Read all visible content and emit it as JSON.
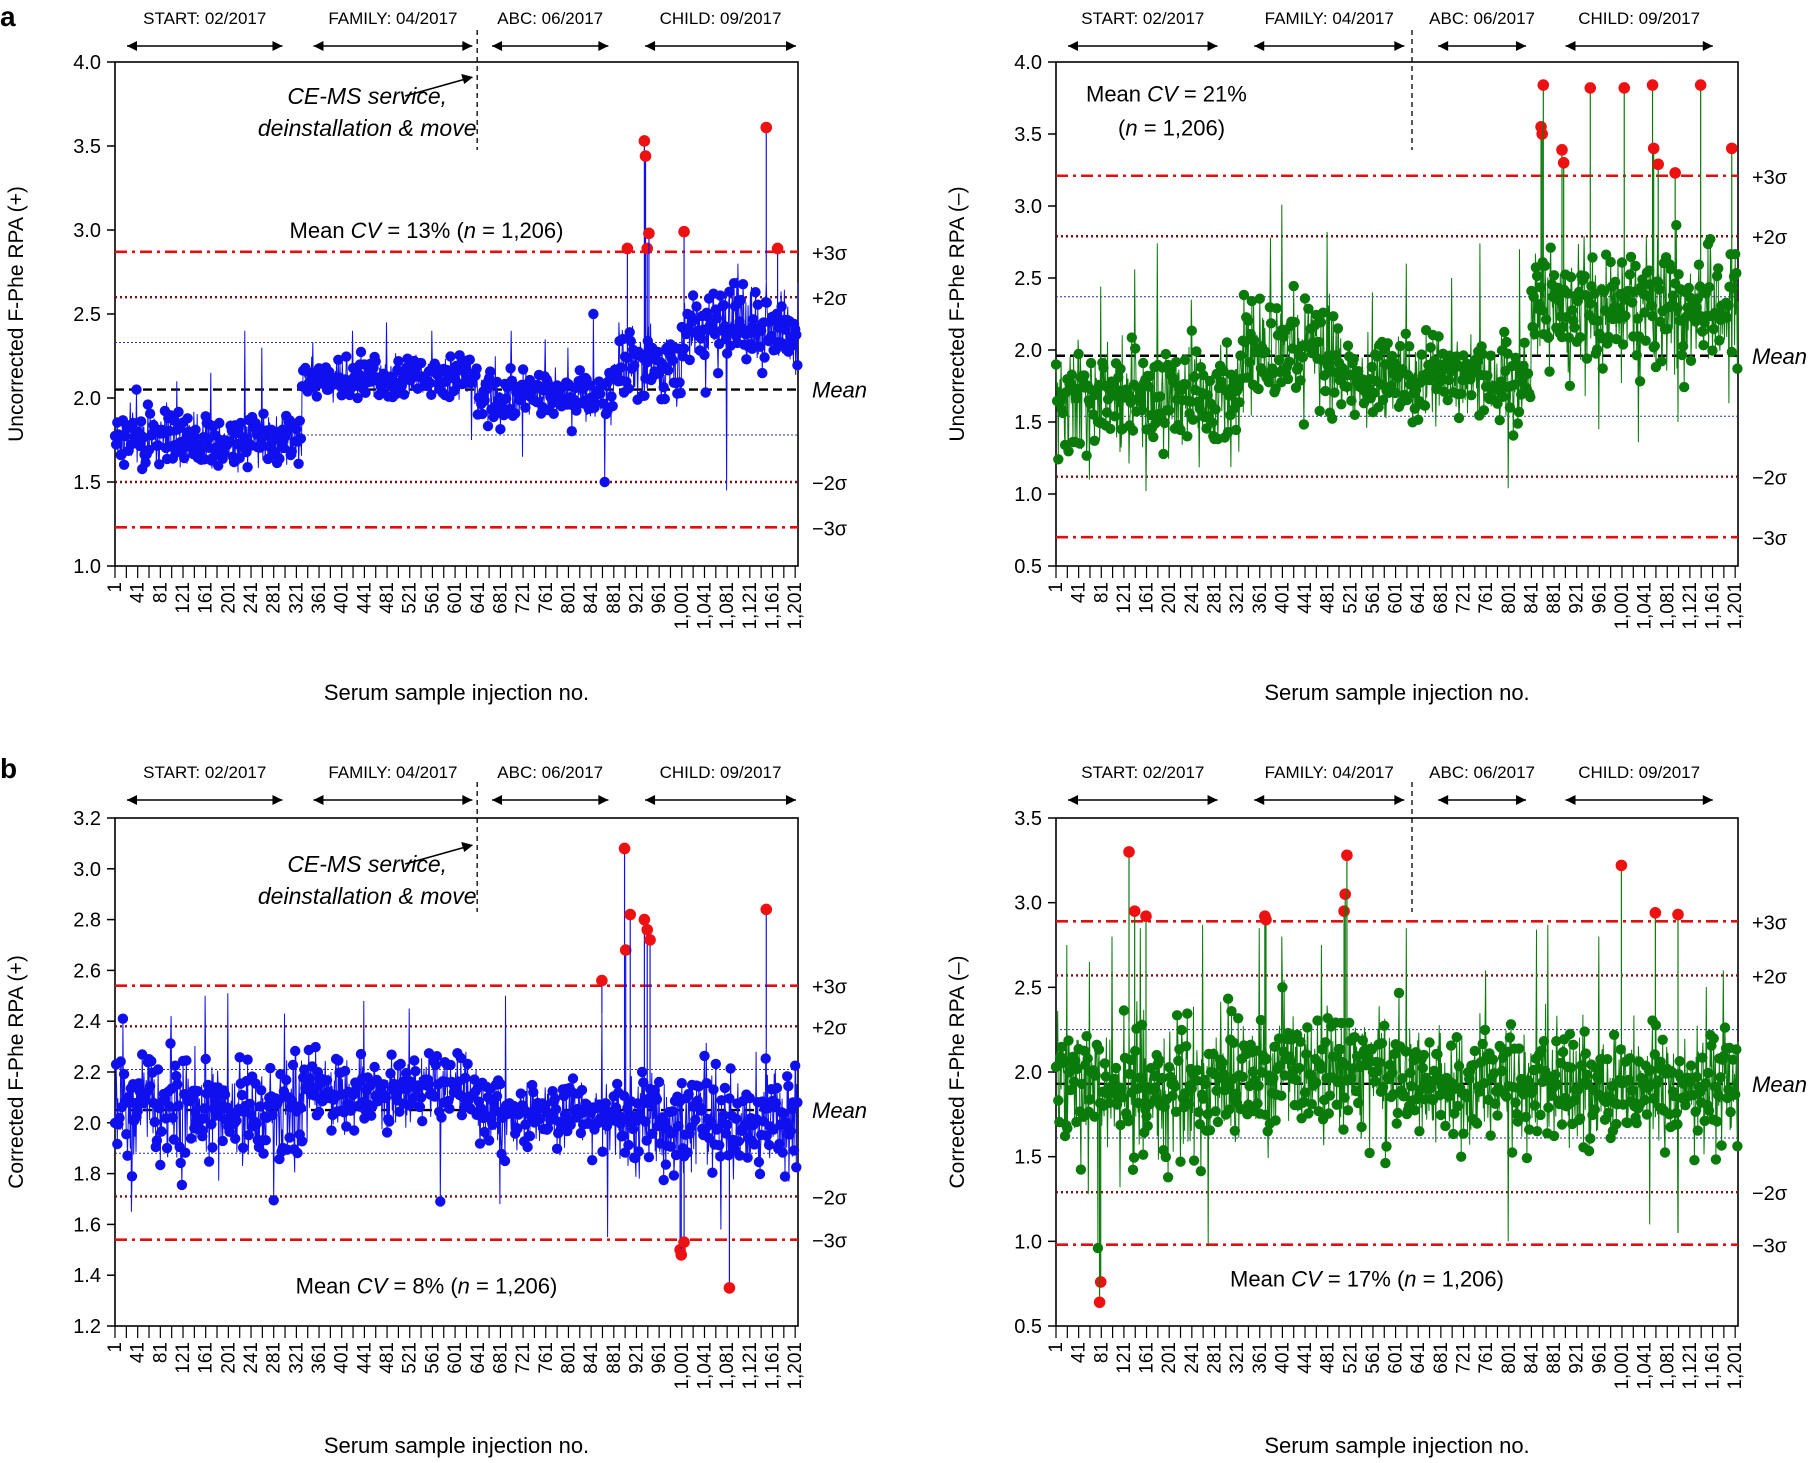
{
  "figure": {
    "x_axis_title": "Serum sample injection no.",
    "tick_labels": [
      "1",
      "41",
      "81",
      "121",
      "161",
      "201",
      "241",
      "281",
      "321",
      "361",
      "401",
      "441",
      "481",
      "521",
      "561",
      "601",
      "641",
      "681",
      "721",
      "761",
      "801",
      "841",
      "881",
      "921",
      "961",
      "1,001",
      "1,041",
      "1,081",
      "1,121",
      "1,161",
      "1,201"
    ]
  },
  "chart_data": [
    {
      "panel_label": "a",
      "type": "scatter",
      "ylabel": "Uncorrected F-Phe RPA (+)",
      "xlabel": "Serum sample injection no.",
      "ylim": [
        1.0,
        4.0
      ],
      "yticks": [
        "1.0",
        "1.5",
        "2.0",
        "2.5",
        "3.0",
        "3.5",
        "4.0"
      ],
      "xlim": [
        1,
        1206
      ],
      "color": "#1010ee",
      "outlier_color": "#ee1111",
      "mean": 2.05,
      "plus2": 2.6,
      "plus3": 2.87,
      "minus2": 1.5,
      "minus3": 1.23,
      "plus1": 2.33,
      "minus1": 1.78,
      "ref_labels": {
        "plus3": "+3σ",
        "plus2": "+2σ",
        "mean": "Mean",
        "minus2": "−2σ",
        "minus3": "−3σ"
      },
      "annotation_pre": "Mean ",
      "annotation_cv": "CV",
      "annotation_post": " = 13% (",
      "annotation_n": "n",
      "annotation_end": " = 1,206)",
      "annotation_y": 3.0,
      "note": [
        "CE-MS service,",
        "deinstallation & move"
      ],
      "divider_at": 640,
      "periods": [
        {
          "label": "START: 02/2017",
          "from": 1,
          "to": 300
        },
        {
          "label": "FAMILY: 04/2017",
          "from": 330,
          "to": 635
        },
        {
          "label": "ABC: 06/2017",
          "from": 645,
          "to": 875
        },
        {
          "label": "CHILD: 09/2017",
          "from": 915,
          "to": 1206
        }
      ],
      "segments": [
        {
          "from": 1,
          "to": 330,
          "mean": 1.76,
          "sd": 0.12
        },
        {
          "from": 331,
          "to": 640,
          "mean": 2.12,
          "sd": 0.09
        },
        {
          "from": 641,
          "to": 880,
          "mean": 2.02,
          "sd": 0.11
        },
        {
          "from": 881,
          "to": 1000,
          "mean": 2.2,
          "sd": 0.17
        },
        {
          "from": 1001,
          "to": 1206,
          "mean": 2.42,
          "sd": 0.16
        }
      ],
      "spikes": [
        [
          39,
          2.05
        ],
        [
          110,
          2.1
        ],
        [
          170,
          2.15
        ],
        [
          230,
          2.4
        ],
        [
          260,
          2.3
        ],
        [
          350,
          2.33
        ],
        [
          420,
          2.4
        ],
        [
          480,
          2.45
        ],
        [
          560,
          2.4
        ],
        [
          700,
          2.4
        ],
        [
          760,
          2.35
        ],
        [
          800,
          2.3
        ],
        [
          845,
          2.5
        ],
        [
          890,
          2.45
        ],
        [
          975,
          2.3
        ],
        [
          1080,
          1.45
        ],
        [
          1100,
          2.8
        ],
        [
          1150,
          2.7
        ],
        [
          865,
          1.5
        ],
        [
          720,
          1.65
        ],
        [
          630,
          1.75
        ]
      ],
      "outliers": [
        [
          905,
          2.89
        ],
        [
          935,
          3.53
        ],
        [
          937,
          3.44
        ],
        [
          940,
          2.89
        ],
        [
          943,
          2.98
        ],
        [
          1005,
          2.99
        ],
        [
          1150,
          3.61
        ],
        [
          1170,
          2.89
        ]
      ]
    },
    {
      "panel_label": "",
      "type": "scatter",
      "ylabel": "Uncorrected F-Phe RPA (–)",
      "xlabel": "Serum sample injection no.",
      "ylim": [
        0.5,
        4.0
      ],
      "yticks": [
        "0.5",
        "1.0",
        "1.5",
        "2.0",
        "2.5",
        "3.0",
        "3.5",
        "4.0"
      ],
      "xlim": [
        1,
        1206
      ],
      "color": "#0a7a0a",
      "outlier_color": "#ee1111",
      "mean": 1.96,
      "plus2": 2.79,
      "plus3": 3.21,
      "minus2": 1.12,
      "minus3": 0.7,
      "plus1": 2.37,
      "minus1": 1.54,
      "ref_labels": {
        "plus3": "+3σ",
        "plus2": "+2σ",
        "mean": "Mean",
        "minus2": "−2σ",
        "minus3": "−3σ"
      },
      "annotation_lines": true,
      "annotation_pre": "Mean ",
      "annotation_cv": "CV",
      "annotation_post": " = 21%",
      "annotation_line2_pre": "(",
      "annotation_n": "n",
      "annotation_end": " = 1,206)",
      "annotation_y": 3.78,
      "note": [],
      "divider_at": 630,
      "periods": [
        {
          "label": "START: 02/2017",
          "from": 1,
          "to": 290
        },
        {
          "label": "FAMILY: 04/2017",
          "from": 330,
          "to": 620
        },
        {
          "label": "ABC: 06/2017",
          "from": 655,
          "to": 835
        },
        {
          "label": "CHILD: 09/2017",
          "from": 880,
          "to": 1165
        }
      ],
      "segments": [
        {
          "from": 1,
          "to": 330,
          "mean": 1.66,
          "sd": 0.27
        },
        {
          "from": 331,
          "to": 500,
          "mean": 2.0,
          "sd": 0.25
        },
        {
          "from": 501,
          "to": 840,
          "mean": 1.8,
          "sd": 0.19
        },
        {
          "from": 841,
          "to": 1206,
          "mean": 2.3,
          "sd": 0.3
        }
      ],
      "spikes": [
        [
          80,
          2.44
        ],
        [
          140,
          2.56
        ],
        [
          180,
          2.74
        ],
        [
          240,
          2.35
        ],
        [
          400,
          3.01
        ],
        [
          380,
          2.78
        ],
        [
          480,
          2.82
        ],
        [
          560,
          2.4
        ],
        [
          620,
          2.6
        ],
        [
          700,
          2.5
        ],
        [
          750,
          2.74
        ],
        [
          800,
          1.04
        ],
        [
          820,
          2.7
        ],
        [
          160,
          1.02
        ],
        [
          60,
          1.1
        ],
        [
          960,
          1.45
        ],
        [
          1030,
          1.36
        ],
        [
          1100,
          1.5
        ],
        [
          1190,
          1.63
        ]
      ],
      "outliers": [
        [
          858,
          3.55
        ],
        [
          860,
          3.5
        ],
        [
          862,
          3.84
        ],
        [
          895,
          3.39
        ],
        [
          898,
          3.3
        ],
        [
          945,
          3.82
        ],
        [
          1005,
          3.82
        ],
        [
          1055,
          3.84
        ],
        [
          1057,
          3.4
        ],
        [
          1065,
          3.29
        ],
        [
          1095,
          3.23
        ],
        [
          1140,
          3.84
        ],
        [
          1195,
          3.4
        ]
      ]
    },
    {
      "panel_label": "b",
      "type": "scatter",
      "ylabel": "Corrected F-Phe RPA (+)",
      "xlabel": "Serum sample injection no.",
      "ylim": [
        1.2,
        3.2
      ],
      "yticks": [
        "1.2",
        "1.4",
        "1.6",
        "1.8",
        "2.0",
        "2.2",
        "2.4",
        "2.6",
        "2.8",
        "3.0",
        "3.2"
      ],
      "xlim": [
        1,
        1206
      ],
      "color": "#1010ee",
      "outlier_color": "#ee1111",
      "mean": 2.05,
      "plus2": 2.38,
      "plus3": 2.54,
      "minus2": 1.71,
      "minus3": 1.54,
      "plus1": 2.21,
      "minus1": 1.88,
      "ref_labels": {
        "plus3": "+3σ",
        "plus2": "+2σ",
        "mean": "Mean",
        "minus2": "−2σ",
        "minus3": "−3σ"
      },
      "annotation_pre": "Mean ",
      "annotation_cv": "CV",
      "annotation_post": " = 8% (",
      "annotation_n": "n",
      "annotation_end": " = 1,206)",
      "annotation_y": 1.36,
      "note": [
        "CE-MS service,",
        "deinstallation & move"
      ],
      "divider_at": 640,
      "periods": [
        {
          "label": "START: 02/2017",
          "from": 1,
          "to": 300
        },
        {
          "label": "FAMILY: 04/2017",
          "from": 330,
          "to": 635
        },
        {
          "label": "ABC: 06/2017",
          "from": 645,
          "to": 875
        },
        {
          "label": "CHILD: 09/2017",
          "from": 915,
          "to": 1206
        }
      ],
      "segments": [
        {
          "from": 1,
          "to": 330,
          "mean": 2.05,
          "sd": 0.15
        },
        {
          "from": 331,
          "to": 640,
          "mean": 2.12,
          "sd": 0.1
        },
        {
          "from": 641,
          "to": 900,
          "mean": 2.03,
          "sd": 0.1
        },
        {
          "from": 901,
          "to": 1206,
          "mean": 2.0,
          "sd": 0.15
        }
      ],
      "spikes": [
        [
          15,
          2.41
        ],
        [
          100,
          2.42
        ],
        [
          160,
          2.5
        ],
        [
          200,
          2.51
        ],
        [
          300,
          2.43
        ],
        [
          440,
          2.48
        ],
        [
          520,
          2.45
        ],
        [
          690,
          2.5
        ],
        [
          860,
          2.43
        ],
        [
          30,
          1.65
        ],
        [
          575,
          1.69
        ],
        [
          680,
          1.68
        ],
        [
          870,
          1.55
        ],
        [
          1070,
          1.58
        ],
        [
          1150,
          2.29
        ]
      ],
      "outliers": [
        [
          860,
          2.56
        ],
        [
          900,
          3.08
        ],
        [
          902,
          2.68
        ],
        [
          910,
          2.82
        ],
        [
          935,
          2.8
        ],
        [
          940,
          2.76
        ],
        [
          945,
          2.72
        ],
        [
          998,
          1.5
        ],
        [
          1000,
          1.48
        ],
        [
          1005,
          1.53
        ],
        [
          1085,
          1.35
        ],
        [
          1150,
          2.84
        ]
      ]
    },
    {
      "panel_label": "",
      "type": "scatter",
      "ylabel": "Corrected F-Phe RPA (–)",
      "xlabel": "Serum sample injection no.",
      "ylim": [
        0.5,
        3.5
      ],
      "yticks": [
        "0.5",
        "1.0",
        "1.5",
        "2.0",
        "2.5",
        "3.0",
        "3.5"
      ],
      "xlim": [
        1,
        1206
      ],
      "color": "#0a7a0a",
      "outlier_color": "#ee1111",
      "mean": 1.93,
      "plus2": 2.57,
      "plus3": 2.89,
      "minus2": 1.29,
      "minus3": 0.98,
      "plus1": 2.25,
      "minus1": 1.61,
      "ref_labels": {
        "plus3": "+3σ",
        "plus2": "+2σ",
        "mean": "Mean",
        "minus2": "−2σ",
        "minus3": "−3σ"
      },
      "annotation_pre": "Mean ",
      "annotation_cv": "CV",
      "annotation_post": " = 17% (",
      "annotation_n": "n",
      "annotation_end": " = 1,206)",
      "annotation_y": 0.78,
      "note": [],
      "divider_at": 630,
      "periods": [
        {
          "label": "START: 02/2017",
          "from": 1,
          "to": 290
        },
        {
          "label": "FAMILY: 04/2017",
          "from": 330,
          "to": 620
        },
        {
          "label": "ABC: 06/2017",
          "from": 655,
          "to": 835
        },
        {
          "label": "CHILD: 09/2017",
          "from": 880,
          "to": 1165
        }
      ],
      "segments": [
        {
          "from": 1,
          "to": 330,
          "mean": 1.9,
          "sd": 0.3
        },
        {
          "from": 331,
          "to": 640,
          "mean": 2.0,
          "sd": 0.25
        },
        {
          "from": 641,
          "to": 1206,
          "mean": 1.92,
          "sd": 0.24
        }
      ],
      "spikes": [
        [
          20,
          2.75
        ],
        [
          60,
          2.65
        ],
        [
          100,
          2.8
        ],
        [
          150,
          2.85
        ],
        [
          260,
          2.87
        ],
        [
          360,
          2.85
        ],
        [
          400,
          2.8
        ],
        [
          470,
          2.75
        ],
        [
          620,
          2.85
        ],
        [
          760,
          2.6
        ],
        [
          850,
          2.84
        ],
        [
          870,
          2.87
        ],
        [
          960,
          2.8
        ],
        [
          1180,
          2.6
        ],
        [
          75,
          0.96
        ],
        [
          270,
          0.97
        ],
        [
          800,
          1.0
        ],
        [
          1050,
          1.1
        ],
        [
          1100,
          1.05
        ]
      ],
      "outliers": [
        [
          80,
          0.76
        ],
        [
          78,
          0.64
        ],
        [
          130,
          3.3
        ],
        [
          140,
          2.95
        ],
        [
          160,
          2.92
        ],
        [
          370,
          2.92
        ],
        [
          372,
          2.9
        ],
        [
          510,
          2.95
        ],
        [
          512,
          3.05
        ],
        [
          515,
          3.28
        ],
        [
          1000,
          3.22
        ],
        [
          1060,
          2.94
        ],
        [
          1100,
          2.93
        ]
      ]
    }
  ]
}
